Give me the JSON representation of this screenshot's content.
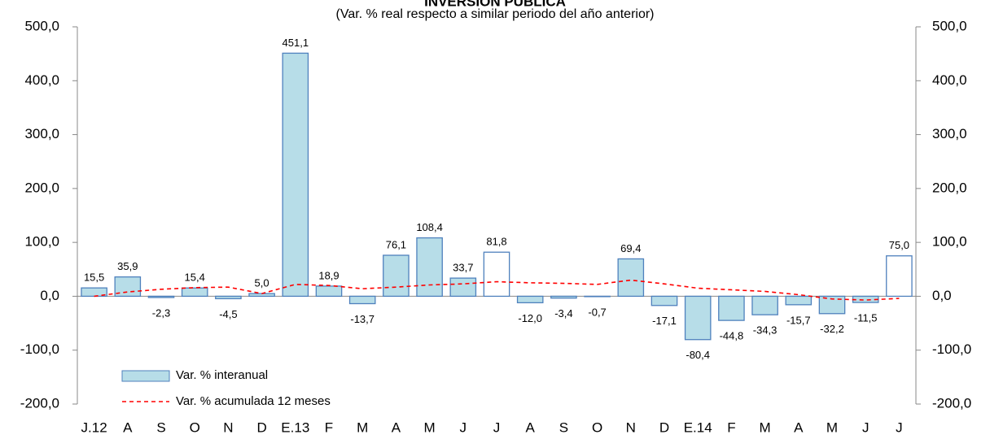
{
  "chart_data": {
    "type": "bar",
    "title": "INVERSIÓN PÚBLICA",
    "subtitle": "(Var. % real respecto a similar periodo del año anterior)",
    "categories": [
      "J.12",
      "A",
      "S",
      "O",
      "N",
      "D",
      "E.13",
      "F",
      "M",
      "A",
      "M",
      "J",
      "J",
      "A",
      "S",
      "O",
      "N",
      "D",
      "E.14",
      "F",
      "M",
      "A",
      "M",
      "J",
      "J"
    ],
    "series": [
      {
        "name": "Var. % interanual",
        "type": "bar",
        "color": "#b7dde8",
        "edge_color": "#4f81bd",
        "colors": [
          "#b7dde8",
          "#b7dde8",
          "#b7dde8",
          "#b7dde8",
          "#b7dde8",
          "#b7dde8",
          "#b7dde8",
          "#b7dde8",
          "#b7dde8",
          "#b7dde8",
          "#b7dde8",
          "#b7dde8",
          "#ffffff",
          "#b7dde8",
          "#b7dde8",
          "#b7dde8",
          "#b7dde8",
          "#b7dde8",
          "#b7dde8",
          "#b7dde8",
          "#b7dde8",
          "#b7dde8",
          "#b7dde8",
          "#b7dde8",
          "#ffffff"
        ],
        "values": [
          15.5,
          35.9,
          -2.3,
          15.4,
          -4.5,
          5.0,
          451.1,
          18.9,
          -13.7,
          76.1,
          108.4,
          33.7,
          81.8,
          -12.0,
          -3.4,
          -0.7,
          69.4,
          -17.1,
          -80.4,
          -44.8,
          -34.3,
          -15.7,
          -32.2,
          -11.5,
          75.0
        ],
        "value_labels": [
          "15,5",
          "35,9",
          "-2,3",
          "15,4",
          "-4,5",
          "5,0",
          "451,1",
          "18,9",
          "-13,7",
          "76,1",
          "108,4",
          "33,7",
          "81,8",
          "-12,0",
          "-3,4",
          "-0,7",
          "69,4",
          "-17,1",
          "-80,4",
          "-44,8",
          "-34,3",
          "-15,7",
          "-32,2",
          "-11,5",
          "75,0"
        ]
      },
      {
        "name": "Var. % acumulada 12 meses",
        "type": "line",
        "color": "#ff0000",
        "dashed": true,
        "values": [
          0,
          8,
          13,
          16,
          17,
          5,
          22,
          20,
          14,
          17,
          21,
          23,
          27,
          25,
          24,
          22,
          30,
          23,
          15,
          12,
          9,
          3,
          -5,
          -7,
          -4
        ]
      }
    ],
    "ylim": [
      -200,
      500
    ],
    "yticks": [
      {
        "value": -200,
        "label": "-200,0"
      },
      {
        "value": -100,
        "label": "-100,0"
      },
      {
        "value": 0,
        "label": "0,0"
      },
      {
        "value": 100,
        "label": "100,0"
      },
      {
        "value": 200,
        "label": "200,0"
      },
      {
        "value": 300,
        "label": "300,0"
      },
      {
        "value": 400,
        "label": "400,0"
      },
      {
        "value": 500,
        "label": "500,0"
      }
    ],
    "y2lim": [
      -200,
      500
    ],
    "y2ticks": [
      {
        "value": -200,
        "label": "-200,0"
      },
      {
        "value": -100,
        "label": "-100,0"
      },
      {
        "value": 0,
        "label": "0,0"
      },
      {
        "value": 100,
        "label": "100,0"
      },
      {
        "value": 200,
        "label": "200,0"
      },
      {
        "value": 300,
        "label": "300,0"
      },
      {
        "value": 400,
        "label": "400,0"
      },
      {
        "value": 500,
        "label": "500,0"
      }
    ],
    "legend": "lower-left",
    "grid": false
  }
}
